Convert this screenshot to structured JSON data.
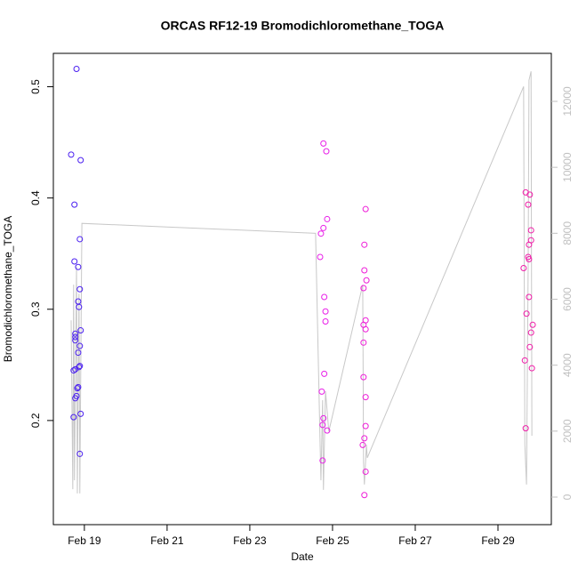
{
  "chart_data": {
    "type": "scatter",
    "title": "ORCAS RF12-19 Bromodichloromethane_TOGA",
    "x_label": "Date",
    "y_label": "Bromodichloromethane_TOGA",
    "xlim": [
      18.25,
      30.29
    ],
    "xticks": [
      {
        "value": 19,
        "label": "Feb 19"
      },
      {
        "value": 21,
        "label": "Feb 21"
      },
      {
        "value": 23,
        "label": "Feb 23"
      },
      {
        "value": 25,
        "label": "Feb 25"
      },
      {
        "value": 27,
        "label": "Feb 27"
      },
      {
        "value": 29,
        "label": "Feb 29"
      }
    ],
    "ylim": [
      0.1064,
      0.53
    ],
    "yticks": [
      0.2,
      0.3,
      0.4,
      0.5
    ],
    "y2lim": [
      -836,
      13456
    ],
    "y2ticks": [
      0,
      2000,
      4000,
      6000,
      8000,
      10000,
      12000
    ],
    "y2_color": "#c0c0c0",
    "series": [
      {
        "type": "scatter",
        "color": "#4a1ff0",
        "x": [
          18.68,
          18.81,
          18.76,
          18.91,
          18.89,
          18.76,
          18.85,
          18.89,
          18.85,
          18.87,
          18.91,
          18.78,
          18.78,
          18.78,
          18.89,
          18.85,
          18.89,
          18.87,
          18.78,
          18.74,
          18.85,
          18.83,
          18.81,
          18.78,
          18.91,
          18.74,
          18.89
        ],
        "values": [
          0.439,
          0.516,
          0.394,
          0.434,
          0.363,
          0.343,
          0.338,
          0.318,
          0.307,
          0.302,
          0.281,
          0.278,
          0.275,
          0.272,
          0.267,
          0.261,
          0.249,
          0.248,
          0.246,
          0.245,
          0.23,
          0.229,
          0.222,
          0.22,
          0.206,
          0.203,
          0.17
        ]
      },
      {
        "type": "scatter",
        "color": "#e81ee8",
        "x": [
          24.78,
          24.85,
          24.87,
          24.78,
          24.72,
          24.7,
          24.8,
          24.83,
          24.83,
          24.8,
          24.74,
          24.78,
          24.76,
          24.87,
          24.76
        ],
        "values": [
          0.449,
          0.442,
          0.381,
          0.373,
          0.368,
          0.347,
          0.311,
          0.298,
          0.289,
          0.242,
          0.226,
          0.202,
          0.196,
          0.191,
          0.164
        ]
      },
      {
        "type": "scatter",
        "color": "#ee1cd8",
        "x": [
          25.8,
          25.77,
          25.77,
          25.82,
          25.75,
          25.8,
          25.75,
          25.8,
          25.75,
          25.75,
          25.8,
          25.8,
          25.77,
          25.73,
          25.8,
          25.77
        ],
        "values": [
          0.39,
          0.358,
          0.335,
          0.326,
          0.319,
          0.29,
          0.286,
          0.282,
          0.27,
          0.239,
          0.221,
          0.195,
          0.184,
          0.178,
          0.154,
          0.133
        ]
      },
      {
        "type": "scatter",
        "color": "#f01ca8",
        "x": [
          29.67,
          29.77,
          29.73,
          29.8,
          29.75,
          29.8,
          29.73,
          29.75,
          29.62,
          29.75,
          29.84,
          29.8,
          29.69,
          29.77,
          29.65,
          29.82,
          29.67
        ],
        "values": [
          0.405,
          0.403,
          0.394,
          0.371,
          0.358,
          0.362,
          0.347,
          0.345,
          0.337,
          0.311,
          0.286,
          0.279,
          0.296,
          0.266,
          0.254,
          0.247,
          0.193
        ]
      },
      {
        "type": "line",
        "axis": "y2",
        "color": "#c8c8c8",
        "x": [
          18.68,
          18.72,
          18.74,
          18.76,
          18.81,
          18.83,
          18.87,
          18.89,
          18.94,
          24.59,
          24.7,
          24.72,
          24.76,
          24.78,
          24.83,
          24.91,
          25.73,
          25.75,
          25.77,
          25.82,
          25.84,
          29.62,
          29.65,
          29.69,
          29.73,
          29.75,
          29.8,
          29.82
        ],
        "values": [
          5360,
          240,
          6440,
          510,
          6980,
          110,
          6170,
          110,
          8300,
          8000,
          1590,
          510,
          2940,
          220,
          3210,
          1990,
          6440,
          1050,
          380,
          1590,
          1190,
          12450,
          1590,
          380,
          6980,
          12640,
          12910,
          1860
        ]
      }
    ]
  }
}
